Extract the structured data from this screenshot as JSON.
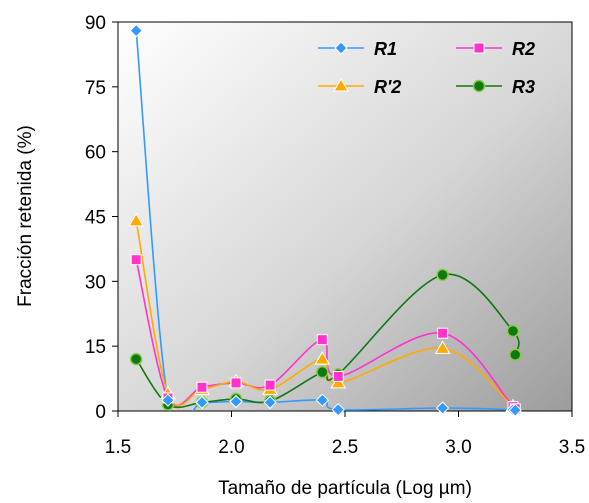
{
  "chart_data": {
    "type": "line",
    "title": "",
    "xlabel": "Tamaño de partícula (Log µm)",
    "ylabel": "Fracción retenida (%)",
    "xlim": [
      1.5,
      3.5
    ],
    "ylim": [
      0,
      90
    ],
    "x_ticks": [
      "1.5",
      "2.0",
      "2.5",
      "3.0",
      "3.5"
    ],
    "y_ticks": [
      "0",
      "15",
      "30",
      "45",
      "60",
      "75",
      "90"
    ],
    "grid": false,
    "background": "gradient-gray",
    "legend_position": "top-right",
    "series": [
      {
        "name": "R1",
        "color": "#3399ff",
        "marker": "diamond",
        "x": [
          1.58,
          1.72,
          1.87,
          2.02,
          2.17,
          2.4,
          2.47,
          2.93,
          3.24,
          3.25
        ],
        "y": [
          88.0,
          2.5,
          2.0,
          2.2,
          2.0,
          2.5,
          0.3,
          0.7,
          0.3,
          0.2
        ]
      },
      {
        "name": "R2",
        "color": "#ff33cc",
        "marker": "square",
        "x": [
          1.58,
          1.72,
          1.87,
          2.02,
          2.17,
          2.4,
          2.47,
          2.93,
          3.24,
          3.25
        ],
        "y": [
          35.0,
          3.0,
          5.5,
          6.5,
          6.0,
          16.5,
          8.0,
          18.0,
          1.0,
          0.5
        ]
      },
      {
        "name": "R'2",
        "color": "#ffaa00",
        "marker": "triangle",
        "x": [
          1.58,
          1.72,
          1.87,
          2.02,
          2.17,
          2.4,
          2.47,
          2.93,
          3.24,
          3.25
        ],
        "y": [
          44.0,
          4.0,
          5.0,
          6.8,
          5.0,
          12.0,
          6.5,
          14.5,
          1.0,
          0.5
        ]
      },
      {
        "name": "R3",
        "color": "#117711",
        "marker": "circle",
        "x": [
          1.58,
          1.72,
          1.87,
          2.02,
          2.17,
          2.4,
          2.47,
          2.93,
          3.24,
          3.25
        ],
        "y": [
          12.0,
          1.5,
          2.0,
          2.8,
          2.3,
          9.0,
          8.5,
          31.5,
          18.5,
          13.0
        ]
      }
    ]
  }
}
